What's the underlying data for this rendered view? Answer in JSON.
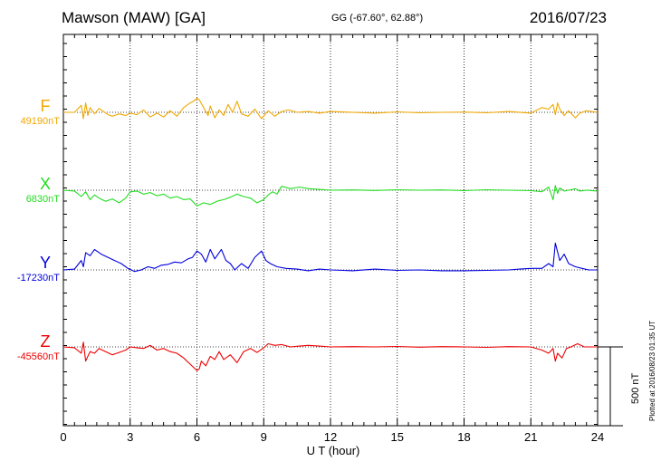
{
  "header": {
    "station": "Mawson (MAW)  [GA]",
    "coords": "GG (-67.60°,  62.88°)",
    "date": "2016/07/23"
  },
  "plotted_note": "Plotted at 2016/08/23 01:35 UT",
  "scale_label": "500 nT",
  "chart_data": {
    "type": "line",
    "xlabel": "U T (hour)",
    "xlim": [
      0,
      24
    ],
    "xticks": [
      0,
      3,
      6,
      9,
      12,
      15,
      18,
      21,
      24
    ],
    "tick_labels": [
      "0",
      "3",
      "6",
      "9",
      "12",
      "15",
      "18",
      "21",
      "24"
    ],
    "units": "nT",
    "scale_bar_nT": 500,
    "series": [
      {
        "name": "F",
        "baseline_label": "49190nT",
        "color": "#f0a800",
        "x": [
          0,
          0.5,
          0.8,
          0.9,
          1.0,
          1.1,
          1.2,
          1.4,
          1.6,
          1.8,
          2.0,
          2.2,
          2.5,
          2.8,
          3.0,
          3.3,
          3.6,
          3.9,
          4.2,
          4.5,
          4.8,
          5.1,
          5.4,
          5.7,
          5.85,
          6.0,
          6.1,
          6.3,
          6.5,
          6.6,
          6.8,
          7.0,
          7.2,
          7.4,
          7.6,
          7.8,
          8.0,
          8.3,
          8.6,
          8.9,
          9.2,
          9.5,
          9.8,
          10.1,
          10.5,
          11,
          11.5,
          12,
          13,
          14,
          15,
          16,
          17,
          18,
          19,
          20,
          21,
          21.5,
          21.8,
          22.0,
          22.1,
          22.2,
          22.3,
          22.5,
          22.7,
          23.0,
          23.2,
          23.5,
          24
        ],
        "y": [
          0,
          0,
          45,
          -40,
          60,
          -20,
          30,
          -10,
          25,
          5,
          -15,
          -25,
          -10,
          -20,
          -5,
          -15,
          15,
          -30,
          -5,
          -30,
          10,
          -25,
          30,
          60,
          70,
          90,
          80,
          30,
          -20,
          40,
          -35,
          15,
          -20,
          50,
          0,
          70,
          -10,
          -25,
          20,
          -40,
          10,
          -25,
          5,
          15,
          0,
          5,
          -5,
          5,
          0,
          -5,
          3,
          -3,
          0,
          2,
          -3,
          5,
          -5,
          30,
          20,
          50,
          -15,
          60,
          20,
          -20,
          10,
          -35,
          -5,
          10,
          0
        ]
      },
      {
        "name": "X",
        "baseline_label": "6830nT",
        "color": "#22dd22",
        "x": [
          0,
          0.5,
          0.8,
          1.0,
          1.2,
          1.4,
          1.6,
          1.9,
          2.2,
          2.5,
          2.8,
          3.0,
          3.3,
          3.6,
          3.9,
          4.2,
          4.5,
          4.8,
          5.1,
          5.4,
          5.7,
          6.0,
          6.3,
          6.6,
          6.9,
          7.2,
          7.5,
          7.8,
          8.1,
          8.4,
          8.7,
          9.0,
          9.2,
          9.4,
          9.6,
          9.8,
          10.2,
          10.6,
          11,
          11.5,
          12,
          13,
          14,
          15,
          16,
          17,
          18,
          19,
          20,
          21,
          21.5,
          21.8,
          22.0,
          22.1,
          22.2,
          22.3,
          22.5,
          22.7,
          23.0,
          23.2,
          23.5,
          24
        ],
        "y": [
          0,
          -5,
          -40,
          -10,
          -60,
          -30,
          -50,
          -70,
          -55,
          -80,
          -50,
          -10,
          -5,
          -25,
          -15,
          -35,
          -25,
          -50,
          -40,
          -60,
          -55,
          -100,
          -80,
          -90,
          -70,
          -60,
          -45,
          -25,
          -40,
          -50,
          -80,
          -60,
          -30,
          -10,
          -25,
          25,
          10,
          20,
          10,
          5,
          0,
          2,
          -2,
          3,
          0,
          2,
          -3,
          3,
          0,
          -3,
          -10,
          20,
          -60,
          30,
          -20,
          15,
          -5,
          0,
          10,
          -5,
          0,
          -5
        ]
      },
      {
        "name": "Y",
        "baseline_label": "-17230nT",
        "color": "#0000dd",
        "x": [
          0,
          0.5,
          0.8,
          0.9,
          1.0,
          1.2,
          1.4,
          1.7,
          2.0,
          2.3,
          2.6,
          2.9,
          3.2,
          3.5,
          3.8,
          4.1,
          4.4,
          4.7,
          5.0,
          5.3,
          5.6,
          5.8,
          6.0,
          6.2,
          6.4,
          6.6,
          6.8,
          7.1,
          7.3,
          7.5,
          7.7,
          8.0,
          8.3,
          8.6,
          8.9,
          9.1,
          9.3,
          9.6,
          10,
          10.5,
          11,
          11.5,
          12,
          13,
          14,
          15,
          16,
          17,
          18,
          19,
          20,
          20.5,
          21,
          21.5,
          21.8,
          22.0,
          22.1,
          22.3,
          22.5,
          22.7,
          23.0,
          23.3,
          23.6,
          24
        ],
        "y": [
          0,
          5,
          60,
          20,
          110,
          90,
          130,
          100,
          80,
          60,
          40,
          10,
          -10,
          0,
          20,
          10,
          30,
          35,
          50,
          45,
          70,
          80,
          120,
          100,
          50,
          130,
          70,
          130,
          60,
          40,
          0,
          40,
          10,
          80,
          120,
          60,
          40,
          20,
          10,
          5,
          -5,
          5,
          0,
          -5,
          5,
          -3,
          0,
          -5,
          -5,
          -3,
          0,
          5,
          10,
          10,
          40,
          20,
          170,
          60,
          100,
          40,
          20,
          10,
          0,
          0
        ]
      },
      {
        "name": "Z",
        "baseline_label": "-45560nT",
        "color": "#ee0000",
        "x": [
          0,
          0.5,
          0.8,
          0.9,
          1.0,
          1.1,
          1.2,
          1.4,
          1.6,
          1.9,
          2.2,
          2.5,
          2.8,
          3.0,
          3.3,
          3.6,
          3.9,
          4.2,
          4.5,
          4.8,
          5.1,
          5.4,
          5.7,
          6.0,
          6.1,
          6.2,
          6.4,
          6.6,
          6.8,
          7.0,
          7.2,
          7.5,
          7.8,
          8.1,
          8.4,
          8.7,
          9.0,
          9.2,
          9.5,
          9.8,
          10.2,
          10.6,
          11,
          11.5,
          12,
          13,
          14,
          15,
          16,
          17,
          18,
          19,
          20,
          21,
          21.5,
          21.8,
          22.0,
          22.1,
          22.2,
          22.4,
          22.6,
          22.8,
          23.1,
          23.4,
          24
        ],
        "y": [
          0,
          -5,
          -40,
          30,
          -90,
          -60,
          -30,
          -40,
          -10,
          -30,
          -50,
          -35,
          -20,
          0,
          -5,
          -10,
          10,
          -20,
          -10,
          -30,
          -40,
          -70,
          -110,
          -150,
          -140,
          -90,
          -120,
          -60,
          -80,
          -30,
          -80,
          -50,
          -100,
          -30,
          -10,
          -35,
          -5,
          20,
          10,
          15,
          0,
          5,
          10,
          5,
          0,
          2,
          0,
          3,
          -2,
          2,
          0,
          -3,
          2,
          0,
          -20,
          -40,
          -10,
          -90,
          -40,
          -70,
          -10,
          0,
          20,
          0,
          0
        ]
      }
    ]
  }
}
